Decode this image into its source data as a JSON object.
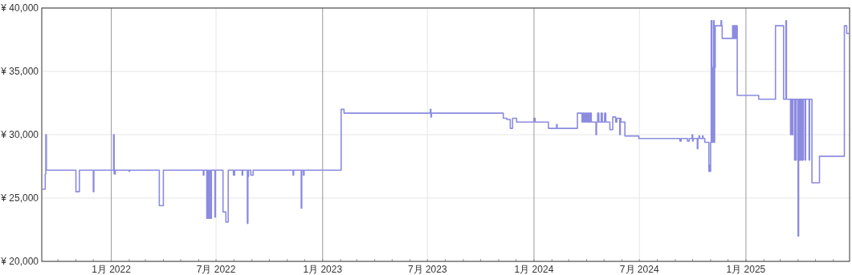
{
  "chart_data": {
    "type": "step",
    "xlim": [
      "2021-09-03",
      "2025-06-29"
    ],
    "ylim": [
      20000,
      40000
    ],
    "yticks": [
      {
        "value": 20000,
        "label": "¥ 20,000"
      },
      {
        "value": 25000,
        "label": "¥ 25,000"
      },
      {
        "value": 30000,
        "label": "¥ 30,000"
      },
      {
        "value": 35000,
        "label": "¥ 35,000"
      },
      {
        "value": 40000,
        "label": "¥ 40,000"
      }
    ],
    "xticks": [
      {
        "value": "2021-10-01",
        "label": null
      },
      {
        "value": "2021-11-01",
        "label": null
      },
      {
        "value": "2021-12-01",
        "label": null
      },
      {
        "value": "2022-01-01",
        "label": "1月 2022"
      },
      {
        "value": "2022-02-01",
        "label": null
      },
      {
        "value": "2022-03-01",
        "label": null
      },
      {
        "value": "2022-04-01",
        "label": null
      },
      {
        "value": "2022-05-01",
        "label": null
      },
      {
        "value": "2022-06-01",
        "label": null
      },
      {
        "value": "2022-07-01",
        "label": "7月 2022"
      },
      {
        "value": "2022-08-01",
        "label": null
      },
      {
        "value": "2022-09-01",
        "label": null
      },
      {
        "value": "2022-10-01",
        "label": null
      },
      {
        "value": "2022-11-01",
        "label": null
      },
      {
        "value": "2022-12-01",
        "label": null
      },
      {
        "value": "2023-01-01",
        "label": "1月 2023"
      },
      {
        "value": "2023-02-01",
        "label": null
      },
      {
        "value": "2023-03-01",
        "label": null
      },
      {
        "value": "2023-04-01",
        "label": null
      },
      {
        "value": "2023-05-01",
        "label": null
      },
      {
        "value": "2023-06-01",
        "label": null
      },
      {
        "value": "2023-07-01",
        "label": "7月 2023"
      },
      {
        "value": "2023-08-01",
        "label": null
      },
      {
        "value": "2023-09-01",
        "label": null
      },
      {
        "value": "2023-10-01",
        "label": null
      },
      {
        "value": "2023-11-01",
        "label": null
      },
      {
        "value": "2023-12-01",
        "label": null
      },
      {
        "value": "2024-01-01",
        "label": "1月 2024"
      },
      {
        "value": "2024-02-01",
        "label": null
      },
      {
        "value": "2024-03-01",
        "label": null
      },
      {
        "value": "2024-04-01",
        "label": null
      },
      {
        "value": "2024-05-01",
        "label": null
      },
      {
        "value": "2024-06-01",
        "label": null
      },
      {
        "value": "2024-07-01",
        "label": "7月 2024"
      },
      {
        "value": "2024-08-01",
        "label": null
      },
      {
        "value": "2024-09-01",
        "label": null
      },
      {
        "value": "2024-10-01",
        "label": null
      },
      {
        "value": "2024-11-01",
        "label": null
      },
      {
        "value": "2024-12-01",
        "label": null
      },
      {
        "value": "2025-01-01",
        "label": "1月 2025"
      },
      {
        "value": "2025-02-01",
        "label": null
      },
      {
        "value": "2025-03-01",
        "label": null
      },
      {
        "value": "2025-04-01",
        "label": null
      },
      {
        "value": "2025-05-01",
        "label": null
      },
      {
        "value": "2025-06-01",
        "label": null
      }
    ],
    "grid": true,
    "x": [
      "2021-09-03",
      "2021-09-09",
      "2021-09-10",
      "2021-09-11",
      "2021-11-01",
      "2021-11-07",
      "2021-12-01",
      "2021-12-02",
      "2022-01-05",
      "2022-01-06",
      "2022-01-08",
      "2022-02-01",
      "2022-02-02",
      "2022-03-25",
      "2022-04-01",
      "2022-06-09",
      "2022-06-10",
      "2022-06-15",
      "2022-06-16",
      "2022-06-17",
      "2022-06-18",
      "2022-06-19",
      "2022-06-21",
      "2022-06-22",
      "2022-06-23",
      "2022-06-29",
      "2022-06-30",
      "2022-07-13",
      "2022-07-18",
      "2022-07-22",
      "2022-07-31",
      "2022-08-02",
      "2022-08-15",
      "2022-08-16",
      "2022-08-24",
      "2022-08-25",
      "2022-08-26",
      "2022-08-30",
      "2022-09-03",
      "2022-11-11",
      "2022-11-12",
      "2022-11-25",
      "2022-11-26",
      "2022-11-29",
      "2022-11-30",
      "2023-02-02",
      "2023-02-07",
      "2023-07-06",
      "2023-07-07",
      "2023-07-08",
      "2023-11-09",
      "2023-11-15",
      "2023-11-21",
      "2023-11-25",
      "2023-12-02",
      "2024-01-01",
      "2024-01-03",
      "2024-01-26",
      "2024-02-09",
      "2024-02-10",
      "2024-03-16",
      "2024-03-24",
      "2024-03-26",
      "2024-03-28",
      "2024-03-30",
      "2024-04-01",
      "2024-04-03",
      "2024-04-05",
      "2024-04-07",
      "2024-04-09",
      "2024-04-17",
      "2024-04-18",
      "2024-04-20",
      "2024-04-22",
      "2024-04-26",
      "2024-04-28",
      "2024-05-02",
      "2024-05-04",
      "2024-05-11",
      "2024-05-16",
      "2024-05-21",
      "2024-05-23",
      "2024-05-28",
      "2024-05-29",
      "2024-05-30",
      "2024-06-06",
      "2024-06-30",
      "2024-09-09",
      "2024-09-11",
      "2024-09-22",
      "2024-09-25",
      "2024-09-30",
      "2024-10-01",
      "2024-10-02",
      "2024-10-09",
      "2024-10-10",
      "2024-10-12",
      "2024-10-13",
      "2024-10-18",
      "2024-10-19",
      "2024-10-22",
      "2024-10-29",
      "2024-10-30",
      "2024-10-31",
      "2024-11-01",
      "2024-11-02",
      "2024-11-03",
      "2024-11-04",
      "2024-11-05",
      "2024-11-06",
      "2024-11-07",
      "2024-11-08",
      "2024-11-09",
      "2024-11-19",
      "2024-11-20",
      "2024-11-21",
      "2024-12-09",
      "2024-12-10",
      "2024-12-11",
      "2024-12-12",
      "2024-12-13",
      "2024-12-14",
      "2024-12-16",
      "2024-12-17",
      "2025-01-23",
      "2025-02-21",
      "2025-03-07",
      "2025-03-11",
      "2025-03-12",
      "2025-03-19",
      "2025-03-20",
      "2025-03-22",
      "2025-03-23",
      "2025-03-26",
      "2025-03-27",
      "2025-03-28",
      "2025-03-29",
      "2025-04-01",
      "2025-04-02",
      "2025-04-03",
      "2025-04-04",
      "2025-04-05",
      "2025-04-06",
      "2025-04-07",
      "2025-04-08",
      "2025-04-10",
      "2025-04-13",
      "2025-04-14",
      "2025-04-20",
      "2025-04-21",
      "2025-04-25",
      "2025-05-08",
      "2025-06-20",
      "2025-06-24",
      "2025-06-28"
    ],
    "series": [
      {
        "color": "#8b8be0",
        "values": [
          25700,
          26900,
          30000,
          27200,
          25500,
          27200,
          25500,
          27200,
          30000,
          26900,
          27200,
          27100,
          27200,
          24400,
          27200,
          26800,
          27200,
          23400,
          27200,
          23400,
          27200,
          23400,
          27200,
          23400,
          27200,
          23500,
          27200,
          23900,
          23100,
          27200,
          26800,
          27200,
          26800,
          27200,
          23000,
          26700,
          27200,
          26800,
          27200,
          26800,
          27200,
          24200,
          27200,
          26800,
          27200,
          32000,
          31700,
          32000,
          31400,
          31700,
          31300,
          31200,
          30500,
          31300,
          31000,
          31300,
          31000,
          30500,
          30800,
          30500,
          31700,
          31000,
          31700,
          31000,
          31700,
          31000,
          31700,
          31000,
          31700,
          31000,
          30000,
          31000,
          31700,
          31000,
          31700,
          31000,
          31700,
          31000,
          30400,
          31400,
          31000,
          31300,
          30000,
          31300,
          31000,
          29900,
          29700,
          29500,
          29700,
          29500,
          29700,
          30000,
          29500,
          29700,
          28900,
          29700,
          29900,
          29700,
          29900,
          29700,
          29400,
          27100,
          27600,
          27100,
          29400,
          39000,
          29400,
          35300,
          29400,
          39000,
          29400,
          35300,
          38600,
          39000,
          38600,
          37600,
          38600,
          37600,
          38600,
          37600,
          38600,
          37600,
          38600,
          33100,
          32800,
          38600,
          32800,
          39000,
          32800,
          30000,
          32800,
          30000,
          32800,
          28000,
          32800,
          28000,
          32800,
          22000,
          28000,
          32800,
          28000,
          32800,
          28000,
          32800,
          28000,
          32800,
          28000,
          32800,
          28000,
          32800,
          26200,
          28300,
          38600,
          38000,
          38000
        ]
      }
    ]
  }
}
